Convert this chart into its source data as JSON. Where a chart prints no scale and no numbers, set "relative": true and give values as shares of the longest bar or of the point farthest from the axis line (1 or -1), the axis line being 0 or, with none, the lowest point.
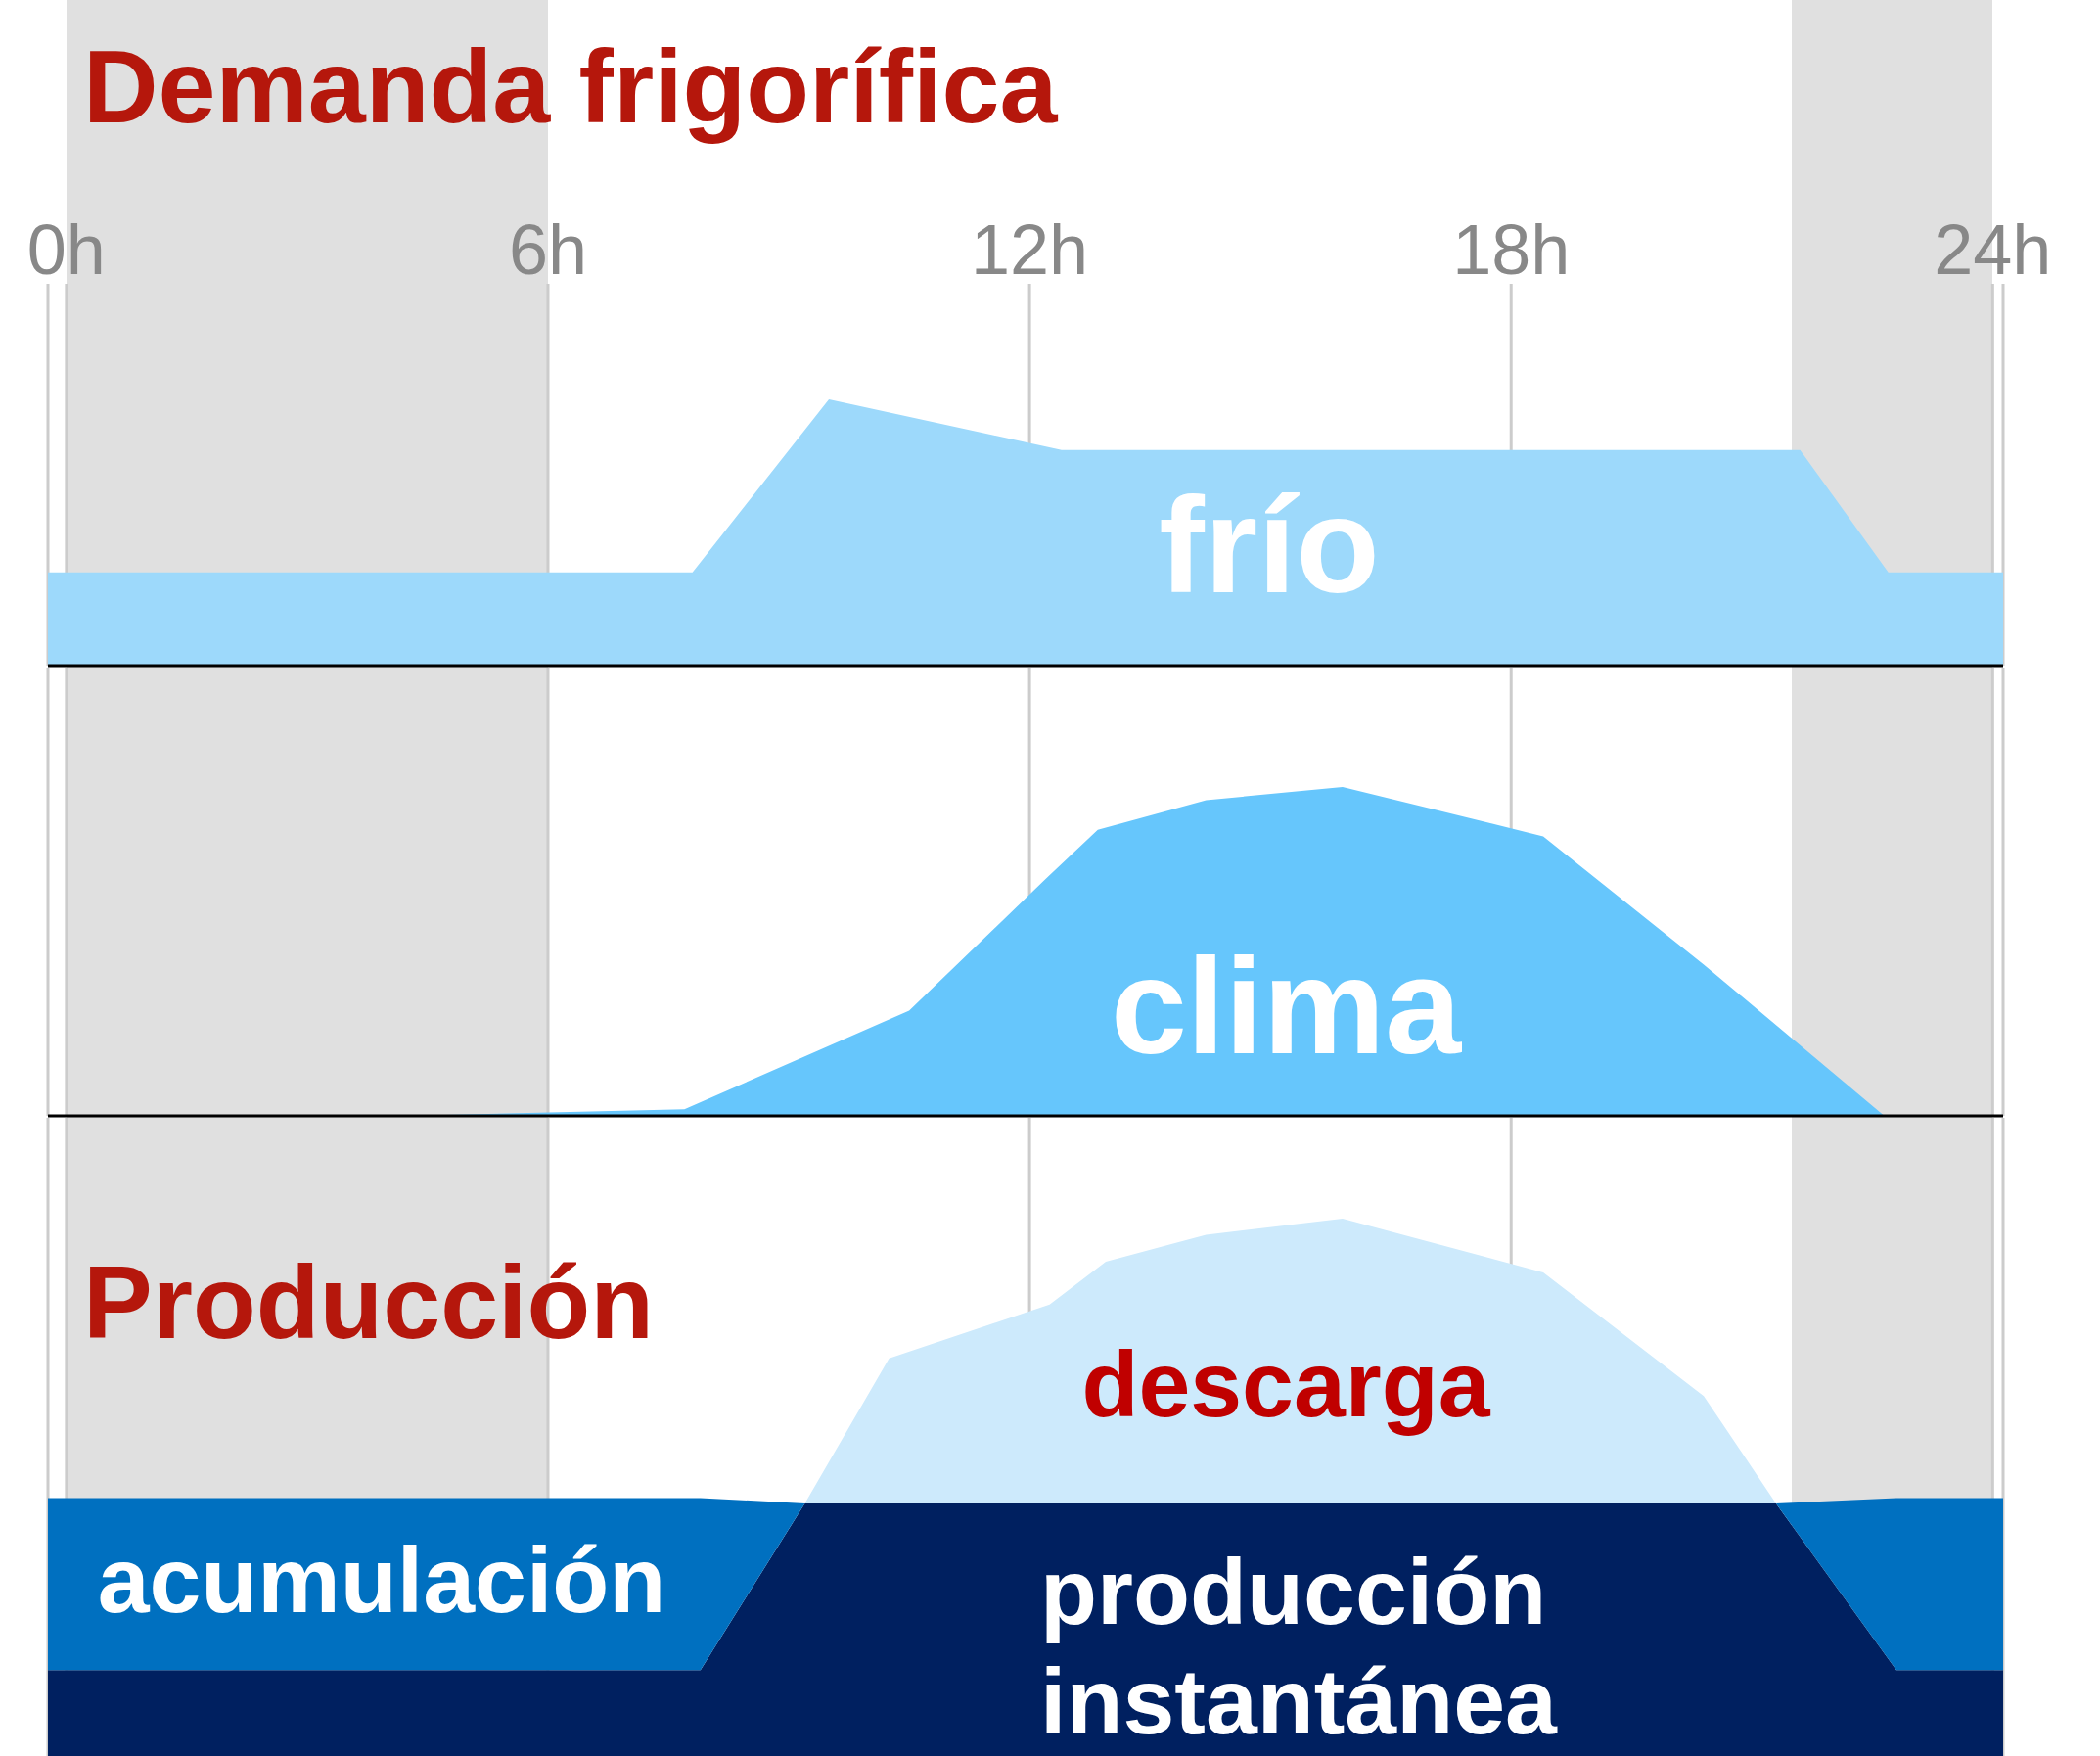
{
  "chart_data": [
    {
      "type": "area",
      "title": "Demanda frigorífica",
      "relative": true,
      "xlim": [
        -0.23,
        24.13
      ],
      "xticks": [
        {
          "value": 0,
          "label": "0h"
        },
        {
          "value": 6,
          "label": "6h"
        },
        {
          "value": 12,
          "label": "12h"
        },
        {
          "value": 18,
          "label": "18h"
        },
        {
          "value": 24,
          "label": "24h"
        }
      ],
      "grid": "x",
      "bands": [
        {
          "axis": "x",
          "from": 0,
          "to": 6,
          "color": "#e0e0e0"
        },
        {
          "axis": "x",
          "from": 21.5,
          "to": 24,
          "color": "#e0e0e0"
        }
      ],
      "x": [
        -0.23,
        7.8,
        9.5,
        12.4,
        21.6,
        22.7,
        24.13
      ],
      "series": [
        {
          "name": "frío",
          "color": "#9dd9fb",
          "values": [
            0.35,
            0.35,
            1,
            0.81,
            0.81,
            0.35,
            0.35
          ]
        }
      ]
    },
    {
      "type": "area",
      "relative": true,
      "xlim": [
        -0.23,
        24.13
      ],
      "xticks": [
        0,
        6,
        12,
        18,
        24
      ],
      "tick_labels": false,
      "grid": "x",
      "bands": [
        {
          "axis": "x",
          "from": 0,
          "to": 6,
          "color": "#e0e0e0"
        },
        {
          "axis": "x",
          "from": 21.5,
          "to": 24,
          "color": "#e0e0e0"
        }
      ],
      "x": [
        4.2,
        7.7,
        10.5,
        12.2,
        12.85,
        14.2,
        15.9,
        18.4,
        20.4,
        22.65
      ],
      "series": [
        {
          "name": "clima",
          "color": "#66c6fc",
          "values": [
            0,
            0.02,
            0.32,
            0.72,
            0.87,
            0.96,
            1,
            0.85,
            0.46,
            0
          ]
        }
      ]
    },
    {
      "type": "area",
      "title": "Producción",
      "relative": true,
      "stacked": true,
      "xlim": [
        -0.23,
        24.13
      ],
      "xticks": [
        0,
        6,
        12,
        18,
        24
      ],
      "tick_labels": false,
      "grid": "x",
      "bands": [
        {
          "axis": "x",
          "from": 0,
          "to": 6,
          "color": "#e0e0e0"
        },
        {
          "axis": "x",
          "from": 21.5,
          "to": 24,
          "color": "#e0e0e0"
        }
      ],
      "x": [
        -0.23,
        7.9,
        9.2,
        10.25,
        12.25,
        12.95,
        14.2,
        15.9,
        18.4,
        20.4,
        21.3,
        22.8,
        24.13
      ],
      "series": [
        {
          "name": "producción instantánea",
          "color": "#002060",
          "values": [
            0.16,
            0.16,
            0.47,
            0.47,
            0.47,
            0.47,
            0.47,
            0.47,
            0.47,
            0.47,
            0.47,
            0.16,
            0.16
          ]
        },
        {
          "name": "acumulación",
          "color": "#0070c0",
          "values": [
            0.32,
            0.32,
            0,
            0,
            0,
            0,
            0,
            0,
            0,
            0,
            0,
            0.32,
            0.32
          ]
        },
        {
          "name": "descarga",
          "color": "#cdeafc",
          "values": [
            0,
            0,
            0,
            0.27,
            0.37,
            0.45,
            0.5,
            0.53,
            0.43,
            0.2,
            0,
            0,
            0
          ]
        }
      ]
    }
  ]
}
